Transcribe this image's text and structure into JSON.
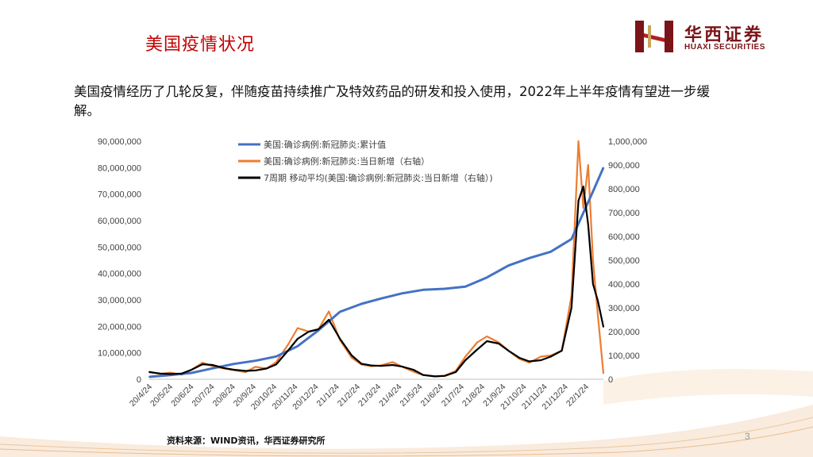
{
  "header": {
    "title": "美国疫情状况",
    "logo_cn": "华西证券",
    "logo_en": "HUAXI SECURITIES"
  },
  "description": "美国疫情经历了几轮反复，伴随疫苗持续推广及特效药品的研发和投入使用，2022年上半年疫情有望进一步缓解。",
  "footer": {
    "source": "资料来源：WIND资讯，华西证券研究所",
    "page_number": "3"
  },
  "chart_data": {
    "type": "line",
    "series": [
      {
        "name": "美国:确诊病例:新冠肺炎:累计值",
        "axis": "left",
        "color": "#4472c4",
        "x": [
          "2020-04-24",
          "2020-05-24",
          "2020-06-24",
          "2020-07-24",
          "2020-08-24",
          "2020-09-24",
          "2020-10-24",
          "2020-11-24",
          "2020-12-24",
          "2021-01-24",
          "2021-02-24",
          "2021-03-24",
          "2021-04-24",
          "2021-05-24",
          "2021-06-24",
          "2021-07-24",
          "2021-08-24",
          "2021-09-24",
          "2021-10-24",
          "2021-11-24",
          "2021-12-24",
          "2022-01-24",
          "2022-02-08"
        ],
        "values": [
          900000,
          1600000,
          2400000,
          4100000,
          5800000,
          7000000,
          8600000,
          12500000,
          18500000,
          25500000,
          28500000,
          30500000,
          32500000,
          33800000,
          34200000,
          35000000,
          38500000,
          43000000,
          45800000,
          48200000,
          53000000,
          71000000,
          80000000
        ]
      },
      {
        "name": "美国:确诊病例:新冠肺炎:当日新增（右轴）",
        "axis": "right",
        "color": "#ed7d31",
        "x": [
          "2020-04-24",
          "2020-05-10",
          "2020-05-24",
          "2020-06-10",
          "2020-06-24",
          "2020-07-10",
          "2020-07-24",
          "2020-08-10",
          "2020-08-24",
          "2020-09-10",
          "2020-09-24",
          "2020-10-10",
          "2020-10-24",
          "2020-11-10",
          "2020-11-24",
          "2020-12-10",
          "2020-12-24",
          "2021-01-08",
          "2021-01-24",
          "2021-02-10",
          "2021-02-24",
          "2021-03-10",
          "2021-03-24",
          "2021-04-10",
          "2021-04-24",
          "2021-05-10",
          "2021-05-24",
          "2021-06-10",
          "2021-06-24",
          "2021-07-10",
          "2021-07-24",
          "2021-08-10",
          "2021-08-24",
          "2021-09-10",
          "2021-09-24",
          "2021-10-10",
          "2021-10-24",
          "2021-11-10",
          "2021-11-24",
          "2021-12-10",
          "2021-12-24",
          "2022-01-03",
          "2022-01-10",
          "2022-01-17",
          "2022-01-24",
          "2022-01-31",
          "2022-02-08"
        ],
        "values": [
          32000,
          22000,
          28000,
          19000,
          40000,
          70000,
          55000,
          45000,
          38000,
          30000,
          52000,
          45000,
          72000,
          145000,
          215000,
          200000,
          210000,
          285000,
          165000,
          90000,
          62000,
          55000,
          58000,
          72000,
          52000,
          32000,
          18000,
          12000,
          15000,
          35000,
          95000,
          155000,
          180000,
          155000,
          120000,
          85000,
          70000,
          95000,
          100000,
          120000,
          350000,
          1000000,
          720000,
          900000,
          500000,
          270000,
          25000
        ]
      },
      {
        "name": "7周期 移动平均(美国:确诊病例:新冠肺炎:当日新增（右轴）)",
        "axis": "right",
        "color": "#000000",
        "x": [
          "2020-04-24",
          "2020-05-10",
          "2020-05-24",
          "2020-06-10",
          "2020-06-24",
          "2020-07-10",
          "2020-07-24",
          "2020-08-10",
          "2020-08-24",
          "2020-09-10",
          "2020-09-24",
          "2020-10-10",
          "2020-10-24",
          "2020-11-10",
          "2020-11-24",
          "2020-12-10",
          "2020-12-24",
          "2021-01-08",
          "2021-01-24",
          "2021-02-10",
          "2021-02-24",
          "2021-03-10",
          "2021-03-24",
          "2021-04-10",
          "2021-04-24",
          "2021-05-10",
          "2021-05-24",
          "2021-06-10",
          "2021-06-24",
          "2021-07-10",
          "2021-07-24",
          "2021-08-10",
          "2021-08-24",
          "2021-09-10",
          "2021-09-24",
          "2021-10-10",
          "2021-10-24",
          "2021-11-10",
          "2021-11-24",
          "2021-12-10",
          "2021-12-24",
          "2022-01-03",
          "2022-01-10",
          "2022-01-17",
          "2022-01-24",
          "2022-01-31",
          "2022-02-08"
        ],
        "values": [
          30000,
          24000,
          22000,
          24000,
          40000,
          63000,
          60000,
          47000,
          40000,
          35000,
          37000,
          45000,
          62000,
          120000,
          170000,
          200000,
          210000,
          250000,
          170000,
          100000,
          65000,
          58000,
          56000,
          60000,
          53000,
          40000,
          18000,
          12000,
          14000,
          30000,
          80000,
          125000,
          160000,
          150000,
          120000,
          90000,
          75000,
          80000,
          95000,
          120000,
          300000,
          750000,
          810000,
          650000,
          400000,
          330000,
          220000
        ]
      }
    ],
    "x_tick_labels": [
      "20/4/24",
      "20/5/24",
      "20/6/24",
      "20/7/24",
      "20/8/24",
      "20/9/24",
      "20/10/24",
      "20/11/24",
      "20/12/24",
      "21/1/24",
      "21/2/24",
      "21/3/24",
      "21/4/24",
      "21/5/24",
      "21/6/24",
      "21/7/24",
      "21/8/24",
      "21/9/24",
      "21/10/24",
      "21/11/24",
      "21/12/24",
      "22/1/24"
    ],
    "y_left": {
      "range": [
        0,
        90000000
      ],
      "ticks": [
        "0",
        "10,000,000",
        "20,000,000",
        "30,000,000",
        "40,000,000",
        "50,000,000",
        "60,000,000",
        "70,000,000",
        "80,000,000",
        "90,000,000"
      ]
    },
    "y_right": {
      "range": [
        0,
        1000000
      ],
      "ticks": [
        "0",
        "100,000",
        "200,000",
        "300,000",
        "400,000",
        "500,000",
        "600,000",
        "700,000",
        "800,000",
        "900,000",
        "1,000,000"
      ]
    },
    "legend_position": "top-center",
    "grid": false
  }
}
